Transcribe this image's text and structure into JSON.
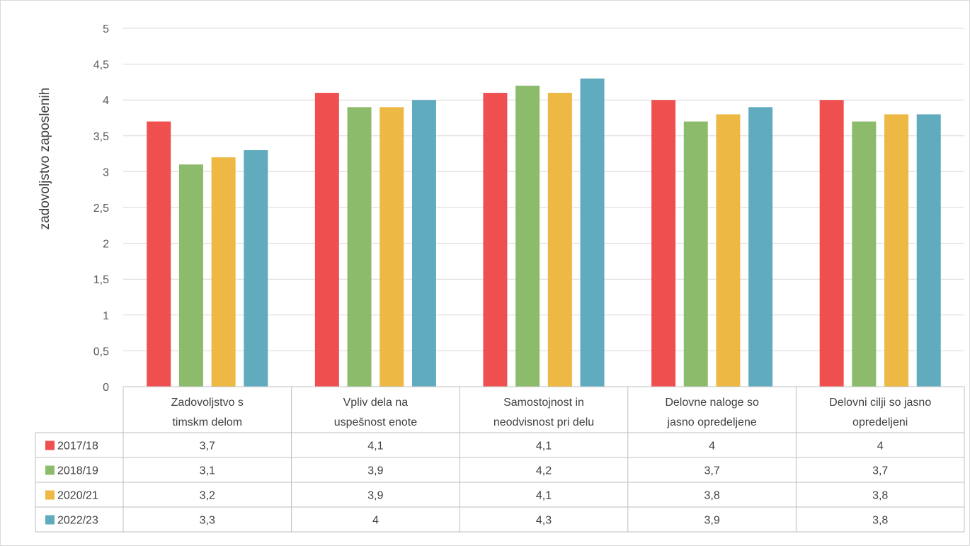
{
  "chart_data": {
    "type": "bar",
    "ylabel": "zadovoljstvo zaposlenih",
    "ylim": [
      0,
      5
    ],
    "yticks": [
      "0",
      "0,5",
      "1",
      "1,5",
      "2",
      "2,5",
      "3",
      "3,5",
      "4",
      "4,5",
      "5"
    ],
    "grid": true,
    "legend": "data-table",
    "categories": [
      [
        "Zadovoljstvo s",
        "timskm delom"
      ],
      [
        "Vpliv dela na",
        "uspešnost enote"
      ],
      [
        "Samostojnost in",
        "neodvisnost pri delu"
      ],
      [
        "Delovne naloge so",
        "jasno opredeljene"
      ],
      [
        "Delovni cilji so jasno",
        "opredeljeni"
      ]
    ],
    "series": [
      {
        "name": "2017/18",
        "color": "#F04F4F",
        "values": [
          3.7,
          4.1,
          4.1,
          4.0,
          4.0
        ],
        "labels": [
          "3,7",
          "4,1",
          "4,1",
          "4",
          "4"
        ]
      },
      {
        "name": "2018/19",
        "color": "#8DBB6C",
        "values": [
          3.1,
          3.9,
          4.2,
          3.7,
          3.7
        ],
        "labels": [
          "3,1",
          "3,9",
          "4,2",
          "3,7",
          "3,7"
        ]
      },
      {
        "name": "2020/21",
        "color": "#EDB843",
        "values": [
          3.2,
          3.9,
          4.1,
          3.8,
          3.8
        ],
        "labels": [
          "3,2",
          "3,9",
          "4,1",
          "3,8",
          "3,8"
        ]
      },
      {
        "name": "2022/23",
        "color": "#61ABBF",
        "values": [
          3.3,
          4.0,
          4.3,
          3.9,
          3.8
        ],
        "labels": [
          "3,3",
          "4",
          "4,3",
          "3,9",
          "3,8"
        ]
      }
    ]
  }
}
